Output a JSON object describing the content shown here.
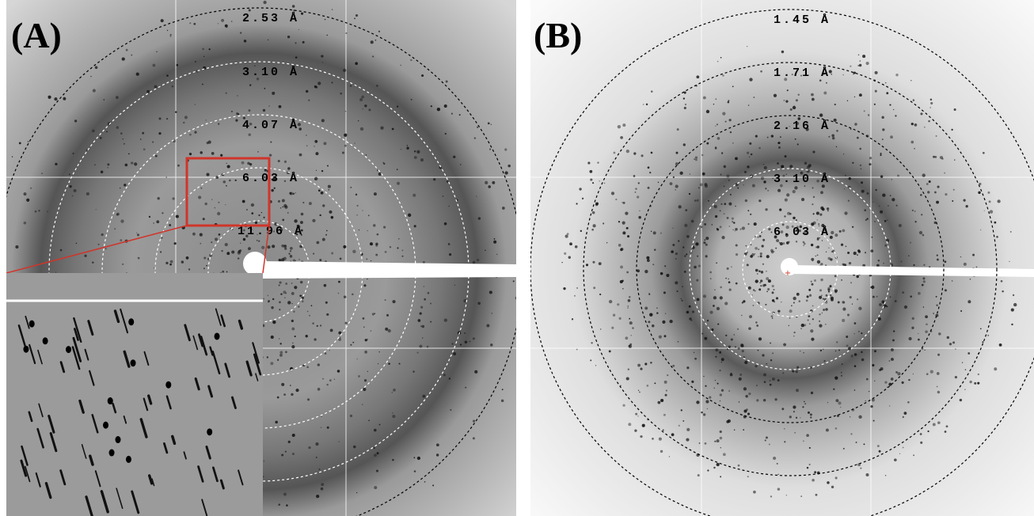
{
  "panels": [
    {
      "label": "(A)",
      "rings": [
        "2.53 Å",
        "3.10 Å",
        "4.07 Å",
        "6.03 Å",
        "11.96 Å"
      ]
    },
    {
      "label": "(B)",
      "rings": [
        "1.45 Å",
        "1.71 Å",
        "2.16 Å",
        "3.10 Å",
        "6.03 Å"
      ]
    }
  ]
}
